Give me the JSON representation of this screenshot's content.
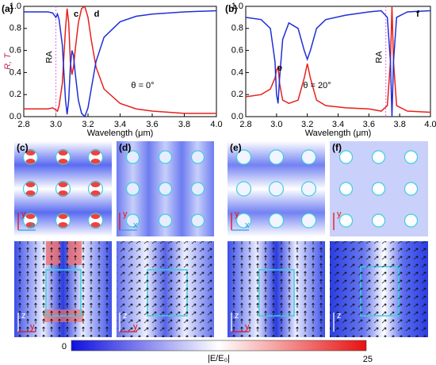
{
  "chart_data": [
    {
      "type": "line",
      "panel": "(a)",
      "xlabel": "Wavelength (μm)",
      "ylabel": "R, T",
      "xlim": [
        2.8,
        4.0
      ],
      "xticks": [
        2.8,
        {
          "value": 3.0,
          "label": "3.0"
        },
        3.2,
        3.4,
        3.6,
        3.8,
        {
          "value": 4.0,
          "label": "4.0"
        }
      ],
      "ylim": [
        0,
        1
      ],
      "yticks": [
        {
          "value": 0,
          "label": "0.0"
        },
        0.2,
        0.4,
        0.6,
        0.8,
        {
          "value": 1,
          "label": "1.0"
        }
      ],
      "ra_line": 3.0,
      "annotations": [
        "c",
        "d",
        "RA",
        "θ = 0°"
      ],
      "x": [
        2.8,
        2.9,
        2.95,
        2.98,
        3.0,
        3.01,
        3.02,
        3.04,
        3.06,
        3.07,
        3.08,
        3.09,
        3.1,
        3.11,
        3.12,
        3.14,
        3.16,
        3.18,
        3.2,
        3.22,
        3.25,
        3.3,
        3.4,
        3.5,
        3.6,
        3.8,
        4.0
      ],
      "series": [
        {
          "name": "R",
          "color": "#e8201c",
          "values": [
            0.07,
            0.07,
            0.07,
            0.08,
            0.06,
            0.05,
            0.1,
            0.3,
            0.8,
            0.98,
            0.85,
            0.5,
            0.38,
            0.45,
            0.6,
            0.85,
            0.98,
            1.0,
            0.9,
            0.7,
            0.45,
            0.25,
            0.12,
            0.07,
            0.05,
            0.03,
            0.03
          ]
        },
        {
          "name": "T",
          "color": "#1f2fd6",
          "values": [
            0.95,
            0.95,
            0.95,
            0.94,
            0.9,
            0.93,
            0.88,
            0.65,
            0.15,
            0.02,
            0.15,
            0.45,
            0.6,
            0.55,
            0.4,
            0.15,
            0.03,
            0.0,
            0.08,
            0.25,
            0.5,
            0.72,
            0.86,
            0.91,
            0.93,
            0.95,
            0.96
          ]
        }
      ]
    },
    {
      "type": "line",
      "panel": "(b)",
      "xlabel": "Wavelength (μm)",
      "xlim": [
        2.8,
        4.0
      ],
      "xticks": [
        2.8,
        {
          "value": 3.0,
          "label": "3.0"
        },
        3.2,
        3.4,
        3.6,
        3.8,
        {
          "value": 4.0,
          "label": "4.0"
        }
      ],
      "ylim": [
        0,
        1
      ],
      "yticks": [
        {
          "value": 0,
          "label": "0.0"
        },
        0.2,
        0.4,
        0.6,
        0.8,
        {
          "value": 1,
          "label": "1.0"
        }
      ],
      "ra_line": 3.71,
      "annotations": [
        "e",
        "f",
        "RA",
        "θ = 20°"
      ],
      "x": [
        2.8,
        2.9,
        2.96,
        2.99,
        3.0,
        3.01,
        3.02,
        3.04,
        3.08,
        3.14,
        3.18,
        3.2,
        3.22,
        3.26,
        3.32,
        3.45,
        3.6,
        3.68,
        3.72,
        3.74,
        3.75,
        3.76,
        3.78,
        3.85,
        4.0
      ],
      "series": [
        {
          "name": "R",
          "color": "#e8201c",
          "values": [
            0.18,
            0.2,
            0.25,
            0.35,
            0.42,
            0.45,
            0.3,
            0.15,
            0.12,
            0.15,
            0.35,
            0.48,
            0.35,
            0.15,
            0.1,
            0.08,
            0.07,
            0.05,
            0.1,
            0.5,
            1.0,
            0.5,
            0.1,
            0.05,
            0.04
          ]
        },
        {
          "name": "T",
          "color": "#1f2fd6",
          "values": [
            0.9,
            0.88,
            0.8,
            0.5,
            0.2,
            0.12,
            0.35,
            0.7,
            0.85,
            0.8,
            0.6,
            0.52,
            0.6,
            0.8,
            0.88,
            0.92,
            0.95,
            0.96,
            0.9,
            0.5,
            0.0,
            0.5,
            0.9,
            0.95,
            0.96
          ]
        }
      ]
    }
  ],
  "maps": {
    "panels": [
      "(c)",
      "(d)",
      "(e)",
      "(f)"
    ],
    "axes": [
      "x",
      "y",
      "z"
    ],
    "colorbar": {
      "min": "0",
      "max": "25",
      "label": "|E/E₀|"
    }
  }
}
